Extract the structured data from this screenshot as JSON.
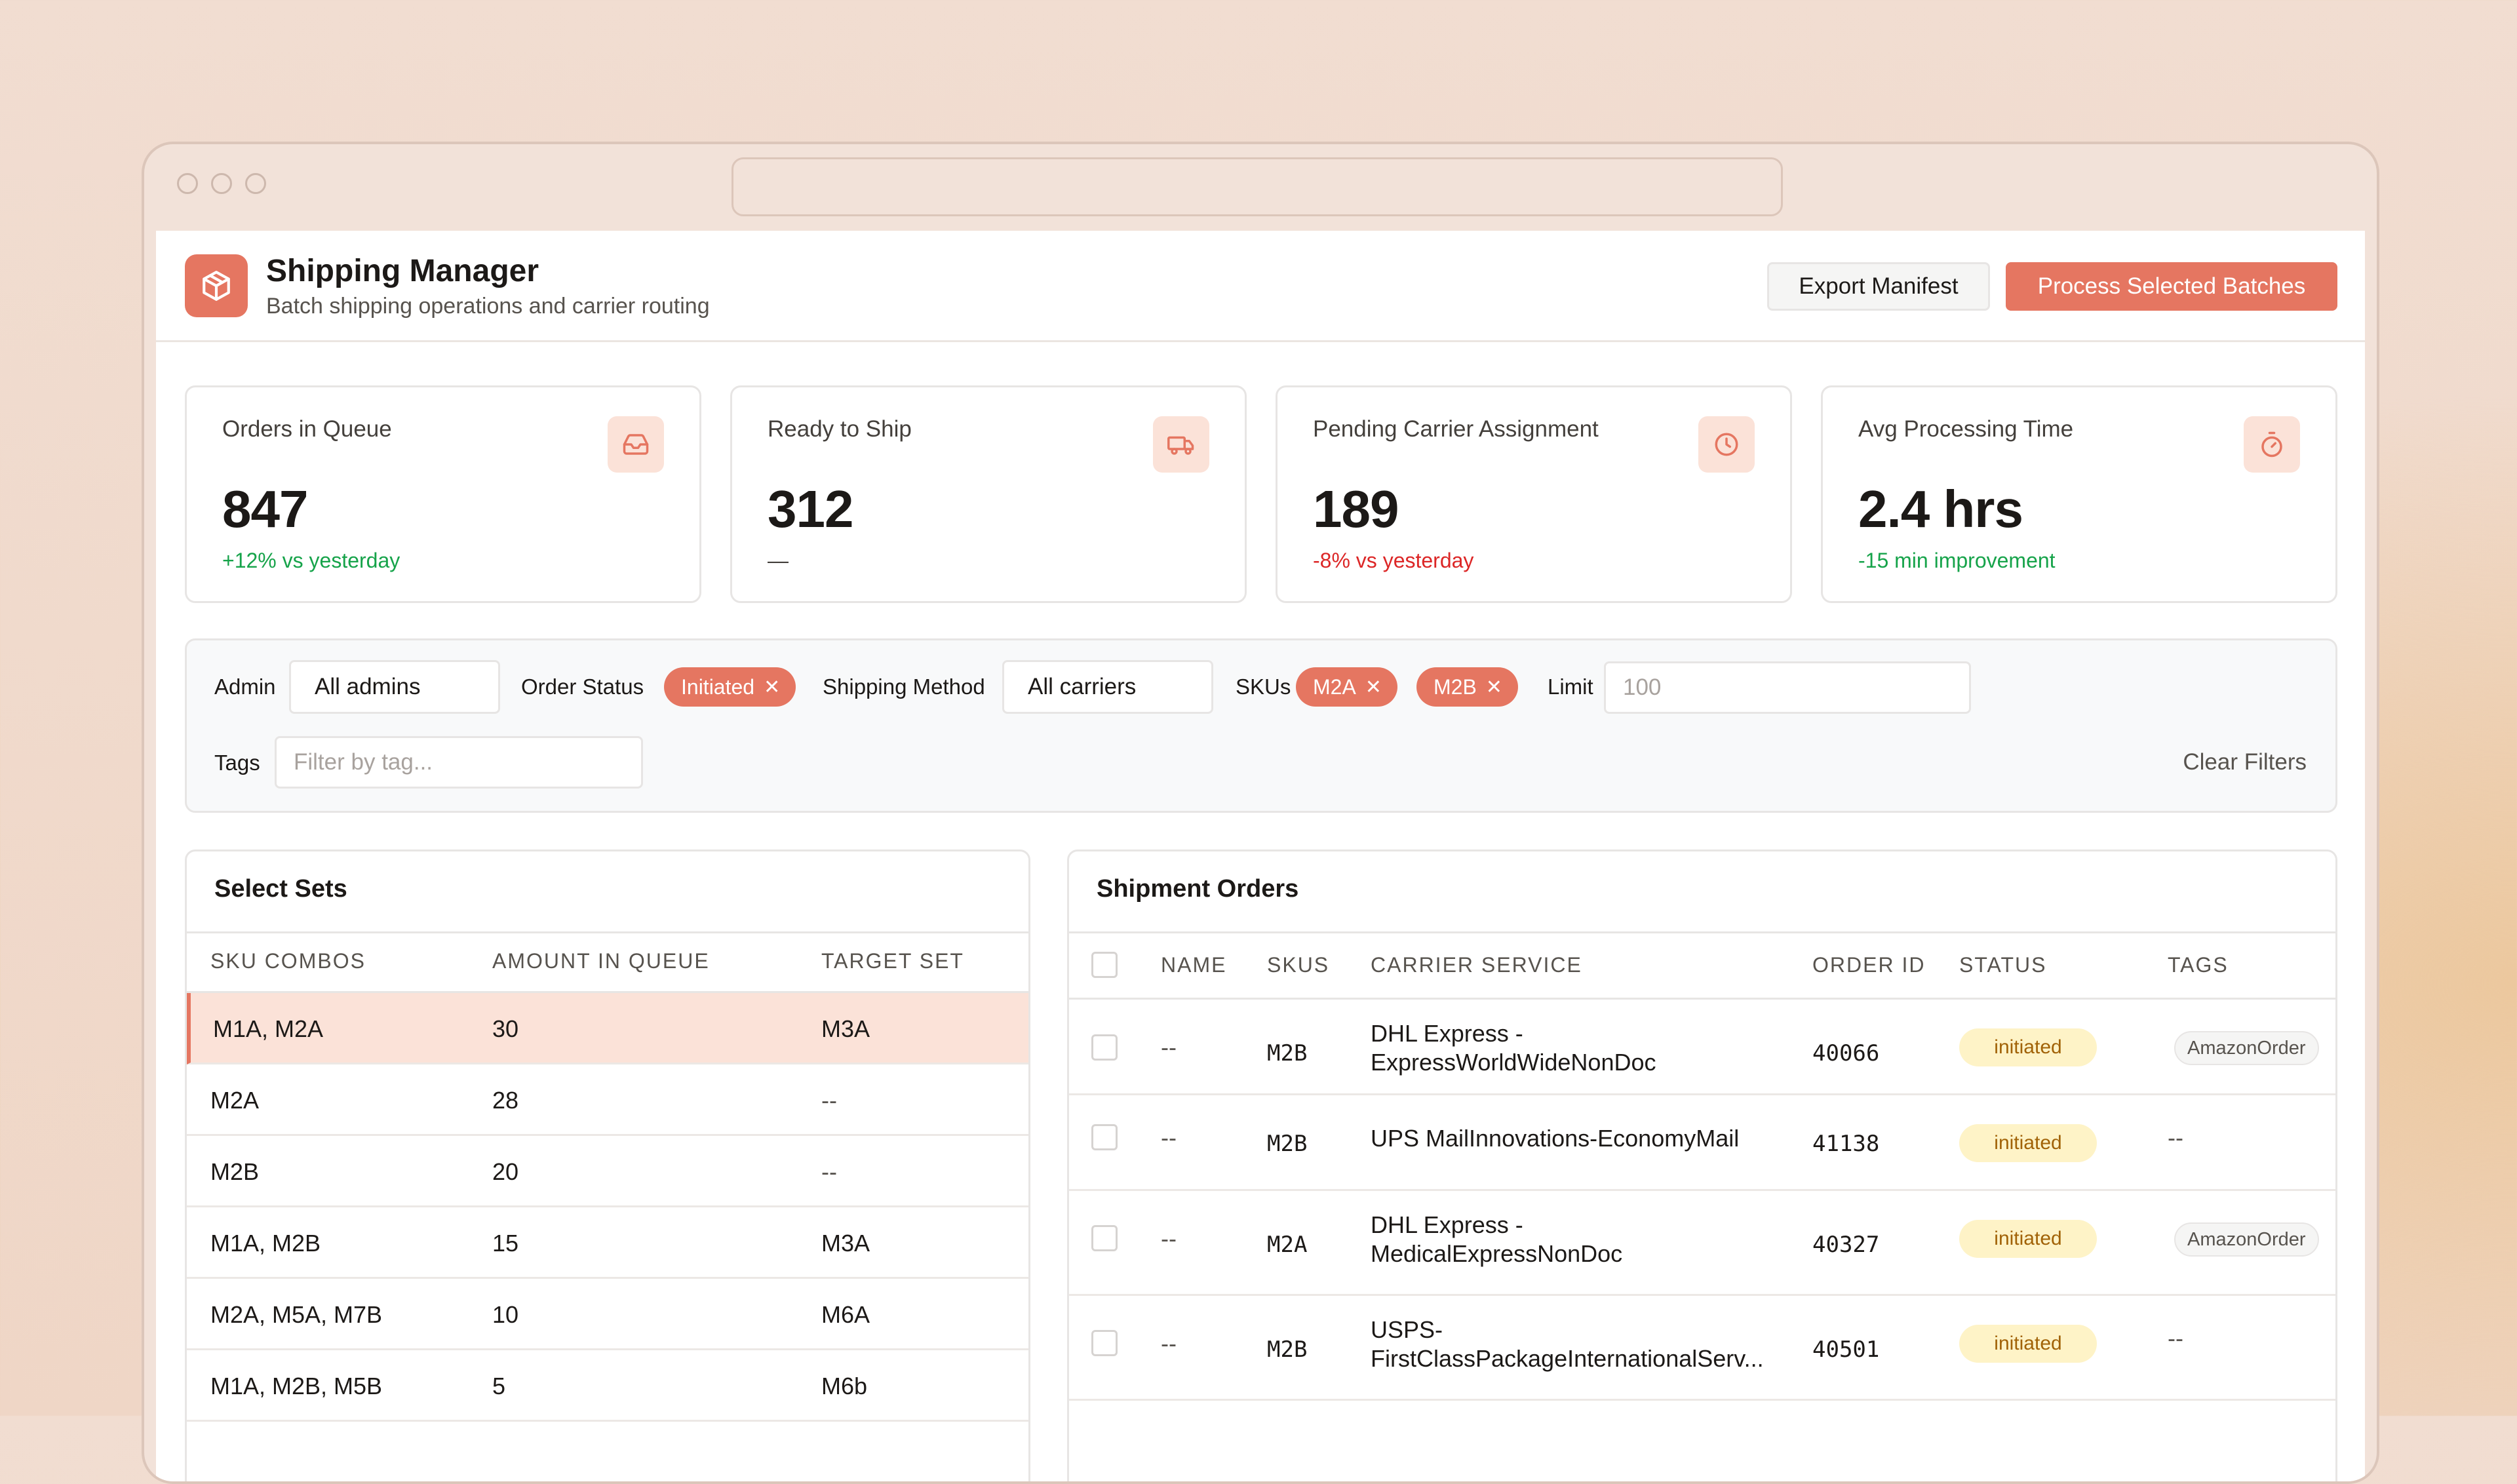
{
  "app": {
    "title": "Shipping Manager",
    "subtitle": "Batch shipping operations and carrier routing",
    "logo_icon": "package-icon",
    "accent": "#e57661"
  },
  "actions": {
    "export_label": "Export Manifest",
    "process_label": "Process Selected Batches"
  },
  "stats": [
    {
      "label": "Orders in Queue",
      "value": "847",
      "delta": "+12% vs yesterday",
      "trend": "positive",
      "icon": "inbox-icon"
    },
    {
      "label": "Ready to Ship",
      "value": "312",
      "delta": "—",
      "trend": "neutral",
      "icon": "truck-icon"
    },
    {
      "label": "Pending Carrier Assignment",
      "value": "189",
      "delta": "-8% vs yesterday",
      "trend": "negative",
      "icon": "clock-icon"
    },
    {
      "label": "Avg Processing Time",
      "value": "2.4 hrs",
      "delta": "-15 min improvement",
      "trend": "positive",
      "icon": "stopwatch-icon"
    }
  ],
  "filters": {
    "admin_label": "Admin",
    "admin_value": "All admins",
    "status_label": "Order Status",
    "status_chips": [
      "Initiated"
    ],
    "method_label": "Shipping Method",
    "method_value": "All carriers",
    "skus_label": "SKUs",
    "sku_chips": [
      "M2A",
      "M2B"
    ],
    "limit_label": "Limit",
    "limit_placeholder": "100",
    "tags_label": "Tags",
    "tags_placeholder": "Filter by tag...",
    "clear_label": "Clear Filters"
  },
  "sets": {
    "title": "Select Sets",
    "columns": [
      "SKU COMBOS",
      "AMOUNT IN QUEUE",
      "TARGET SET"
    ],
    "rows": [
      {
        "combo": "M1A, M2A",
        "amount": "30",
        "target": "M3A",
        "selected": true
      },
      {
        "combo": "M2A",
        "amount": "28",
        "target": "--"
      },
      {
        "combo": "M2B",
        "amount": "20",
        "target": "--"
      },
      {
        "combo": "M1A, M2B",
        "amount": "15",
        "target": "M3A"
      },
      {
        "combo": "M2A, M5A, M7B",
        "amount": "10",
        "target": "M6A"
      },
      {
        "combo": "M1A, M2B, M5B",
        "amount": "5",
        "target": "M6b"
      }
    ]
  },
  "orders": {
    "title": "Shipment Orders",
    "columns": [
      "NAME",
      "SKUS",
      "CARRIER SERVICE",
      "ORDER ID",
      "STATUS",
      "TAGS"
    ],
    "rows": [
      {
        "name": "--",
        "sku": "M2B",
        "carrier_l1": "DHL Express -",
        "carrier_l2": "ExpressWorldWideNonDoc",
        "order_id": "40066",
        "status": "initiated",
        "tag": "AmazonOrder"
      },
      {
        "name": "--",
        "sku": "M2B",
        "carrier_l1": "UPS MailInnovations-EconomyMail",
        "carrier_l2": "",
        "order_id": "41138",
        "status": "initiated",
        "tag": "--"
      },
      {
        "name": "--",
        "sku": "M2A",
        "carrier_l1": "DHL Express -",
        "carrier_l2": "MedicalExpressNonDoc",
        "order_id": "40327",
        "status": "initiated",
        "tag": "AmazonOrder"
      },
      {
        "name": "--",
        "sku": "M2B",
        "carrier_l1": "USPS-",
        "carrier_l2": "FirstClassPackageInternationalServ...",
        "order_id": "40501",
        "status": "initiated",
        "tag": "--"
      }
    ]
  }
}
